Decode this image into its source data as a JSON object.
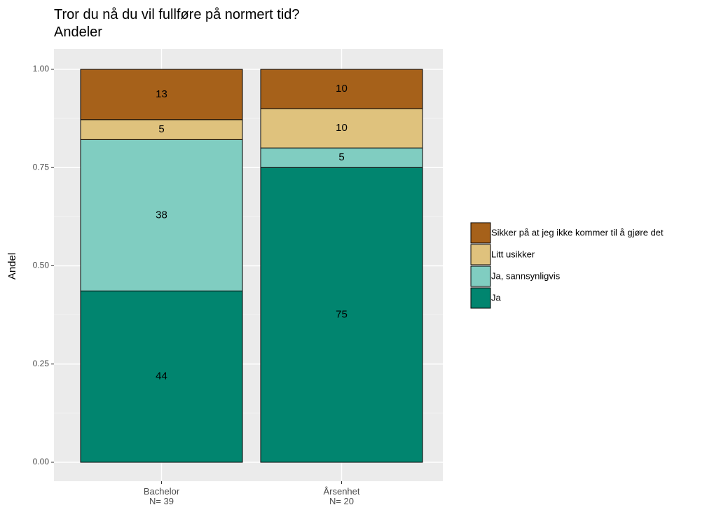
{
  "chart_data": {
    "type": "stacked_bar",
    "title": "Tror du nå du vil fullføre på normert tid?\nAndeler",
    "y_label": "Andel",
    "categories": [
      "Bachelor\nN= 39",
      "Årsenhet\nN= 20"
    ],
    "series": [
      {
        "name": "Ja",
        "color": "#01856f",
        "values": [
          0.436,
          0.75
        ],
        "value_labels": [
          "44",
          "75"
        ]
      },
      {
        "name": "Ja, sannsynligvis",
        "color": "#80cdc1",
        "values": [
          0.385,
          0.05
        ],
        "value_labels": [
          "38",
          "5"
        ]
      },
      {
        "name": "Litt usikker",
        "color": "#dfc27d",
        "values": [
          0.051,
          0.1
        ],
        "value_labels": [
          "5",
          "10"
        ]
      },
      {
        "name": "Sikker på at jeg ikke kommer til å gjøre det",
        "color": "#a6611a",
        "values": [
          0.128,
          0.1
        ],
        "value_labels": [
          "13",
          "10"
        ]
      }
    ],
    "ylim": [
      0,
      1
    ],
    "yticks": [
      {
        "value": 0,
        "label": "0.00"
      },
      {
        "value": 0.25,
        "label": "0.25"
      },
      {
        "value": 0.5,
        "label": "0.50"
      },
      {
        "value": 0.75,
        "label": "0.75"
      },
      {
        "value": 1,
        "label": "1.00"
      }
    ],
    "grid": true,
    "legend": "right"
  }
}
